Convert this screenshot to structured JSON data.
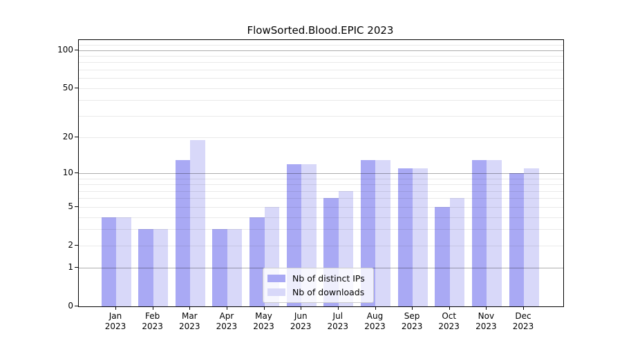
{
  "title": "FlowSorted.Blood.EPIC 2023",
  "chart_data": {
    "type": "bar",
    "title": "FlowSorted.Blood.EPIC 2023",
    "categories": [
      "Jan 2023",
      "Feb 2023",
      "Mar 2023",
      "Apr 2023",
      "May 2023",
      "Jun 2023",
      "Jul 2023",
      "Aug 2023",
      "Sep 2023",
      "Oct 2023",
      "Nov 2023",
      "Dec 2023"
    ],
    "x_tick_months": [
      "Jan",
      "Feb",
      "Mar",
      "Apr",
      "May",
      "Jun",
      "Jul",
      "Aug",
      "Sep",
      "Oct",
      "Nov",
      "Dec"
    ],
    "x_tick_year": "2023",
    "series": [
      {
        "name": "Nb of distinct IPs",
        "color": "#a9a9f4",
        "values": [
          4,
          3,
          13,
          3,
          4,
          12,
          6,
          13,
          11,
          5,
          13,
          10
        ]
      },
      {
        "name": "Nb of downloads",
        "color": "#d8d8f9",
        "values": [
          4,
          3,
          19,
          3,
          5,
          12,
          7,
          13,
          11,
          6,
          13,
          11
        ]
      }
    ],
    "yscale": "log1p",
    "ylim": [
      0,
      120
    ],
    "y_tick_values": [
      0,
      1,
      2,
      5,
      10,
      20,
      50,
      100
    ],
    "y_tick_labels": [
      "0",
      "1",
      "2",
      "5",
      "10",
      "20",
      "50",
      "100"
    ],
    "major_grid_values": [
      1,
      10,
      100
    ],
    "minor_grid_values": [
      2,
      3,
      4,
      5,
      6,
      7,
      8,
      9,
      20,
      30,
      40,
      50,
      60,
      70,
      80,
      90,
      110
    ],
    "grid": "both",
    "legend_position": "lower center",
    "xlabel": "",
    "ylabel": ""
  },
  "legend": {
    "items": [
      {
        "label": "Nb of distinct IPs"
      },
      {
        "label": "Nb of downloads"
      }
    ]
  },
  "colors": {
    "background": "#ffffff",
    "bar_dark": "#a9a9f4",
    "bar_light": "#d8d8f9",
    "major_grid": "rgba(0,0,0,0.32)",
    "minor_grid": "rgba(0,0,0,0.085)",
    "spine": "#000000",
    "text": "#000000"
  }
}
